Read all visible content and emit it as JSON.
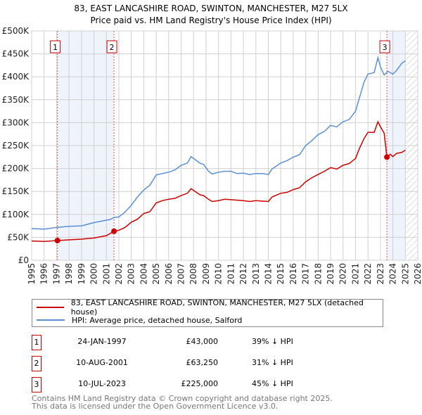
{
  "chart_data": {
    "type": "line",
    "title": "83, EAST LANCASHIRE ROAD, SWINTON, MANCHESTER, M27 5LX",
    "subtitle": "Price paid vs. HM Land Registry's House Price Index (HPI)",
    "xlabel": "",
    "ylabel": "",
    "xlim": [
      1995,
      2026
    ],
    "ylim": [
      0,
      500000
    ],
    "grid": true,
    "x_ticks": [
      "1995",
      "1996",
      "1997",
      "1998",
      "1999",
      "2000",
      "2001",
      "2002",
      "2003",
      "2004",
      "2005",
      "2006",
      "2007",
      "2008",
      "2009",
      "2010",
      "2011",
      "2012",
      "2013",
      "2014",
      "2015",
      "2016",
      "2017",
      "2018",
      "2019",
      "2020",
      "2021",
      "2022",
      "2023",
      "2024",
      "2025",
      "2026"
    ],
    "y_ticks": [
      {
        "v": 0,
        "label": "£0"
      },
      {
        "v": 50000,
        "label": "£50K"
      },
      {
        "v": 100000,
        "label": "£100K"
      },
      {
        "v": 150000,
        "label": "£150K"
      },
      {
        "v": 200000,
        "label": "£200K"
      },
      {
        "v": 250000,
        "label": "£250K"
      },
      {
        "v": 300000,
        "label": "£300K"
      },
      {
        "v": 350000,
        "label": "£350K"
      },
      {
        "v": 400000,
        "label": "£400K"
      },
      {
        "v": 450000,
        "label": "£450K"
      },
      {
        "v": 500000,
        "label": "£500K"
      }
    ],
    "series": [
      {
        "name": "83, EAST LANCASHIRE ROAD, SWINTON, MANCHESTER, M27 5LX (detached house)",
        "color": "#cc0000",
        "x": [
          1995,
          1996,
          1997.07,
          1998,
          1999,
          2000,
          2001,
          2001.61,
          2002,
          2002.5,
          2003,
          2003.5,
          2004,
          2004.5,
          2005,
          2005.5,
          2006,
          2006.5,
          2007,
          2007.5,
          2007.8,
          2008.5,
          2008.8,
          2009.2,
          2009.5,
          2010,
          2010.5,
          2011,
          2012,
          2012.5,
          2013,
          2013.5,
          2014,
          2014.3,
          2015,
          2015.5,
          2016,
          2016.5,
          2017,
          2017.5,
          2018,
          2018.5,
          2019,
          2019.5,
          2020,
          2020.5,
          2021,
          2021.3,
          2021.7,
          2022,
          2022.5,
          2022.8,
          2023,
          2023.3,
          2023.52,
          2023.8,
          2024,
          2024.3,
          2024.7,
          2025
        ],
        "y": [
          42000,
          41000,
          43000,
          44500,
          46000,
          48500,
          53700,
          63250,
          65400,
          71600,
          83000,
          89500,
          102000,
          106000,
          125000,
          130000,
          133000,
          135000,
          141000,
          146000,
          156000,
          143000,
          141000,
          133000,
          128000,
          130000,
          133000,
          132000,
          130000,
          128000,
          130000,
          129000,
          128000,
          138000,
          146000,
          148000,
          154000,
          158000,
          171000,
          180000,
          187000,
          194000,
          202000,
          199000,
          207000,
          211000,
          222000,
          243000,
          266000,
          279000,
          279000,
          302000,
          291000,
          277000,
          225000,
          231000,
          226000,
          233000,
          235000,
          240000
        ]
      },
      {
        "name": "HPI: Average price, detached house, Salford",
        "color": "#5b8fd4",
        "x": [
          1995,
          1996,
          1997,
          1998,
          1999,
          2000,
          2001.3,
          2001.6,
          2002,
          2002.5,
          2003,
          2003.5,
          2004,
          2004.5,
          2005,
          2006,
          2006.5,
          2007,
          2007.5,
          2007.8,
          2008.5,
          2008.8,
          2009.2,
          2009.5,
          2010,
          2010.5,
          2011,
          2011.5,
          2012,
          2012.5,
          2013,
          2013.5,
          2014,
          2014.3,
          2015,
          2015.5,
          2016,
          2016.5,
          2017,
          2017.5,
          2018,
          2018.5,
          2019,
          2019.5,
          2020,
          2020.5,
          2021,
          2021.3,
          2021.7,
          2022,
          2022.5,
          2022.8,
          2023,
          2023.3,
          2023.6,
          2024,
          2024.3,
          2024.7,
          2025
        ],
        "y": [
          69000,
          68000,
          71500,
          74000,
          75000,
          82000,
          89000,
          93000,
          94500,
          105000,
          120000,
          138000,
          153000,
          164000,
          186000,
          192000,
          197000,
          207000,
          212000,
          226000,
          212000,
          209000,
          194000,
          188000,
          192000,
          194000,
          194000,
          189000,
          190000,
          187000,
          189000,
          189000,
          187000,
          199000,
          212000,
          217000,
          225000,
          230000,
          250000,
          261000,
          274000,
          281000,
          294000,
          291000,
          302000,
          307000,
          325000,
          353000,
          389000,
          406000,
          409000,
          442000,
          422000,
          404000,
          412000,
          406000,
          414000,
          429000,
          435000
        ]
      }
    ],
    "sales": [
      {
        "id": "1",
        "x": 1997.07,
        "price": 43000
      },
      {
        "id": "2",
        "x": 2001.61,
        "price": 63250
      },
      {
        "id": "3",
        "x": 2023.52,
        "price": 225000
      }
    ],
    "shaded_ranges": [
      [
        1997.07,
        2001.61
      ],
      [
        2023.52,
        2025.0
      ]
    ],
    "forecast_hatch_from": 2025.05,
    "legend_placement": "below"
  },
  "legend": {
    "items": [
      {
        "label": "83, EAST LANCASHIRE ROAD, SWINTON, MANCHESTER, M27 5LX (detached house)",
        "color": "#cc0000"
      },
      {
        "label": "HPI: Average price, detached house, Salford",
        "color": "#5b8fd4"
      }
    ]
  },
  "transactions": [
    {
      "num": "1",
      "date": "24-JAN-1997",
      "price": "£43,000",
      "hpi": "39% ↓ HPI"
    },
    {
      "num": "2",
      "date": "10-AUG-2001",
      "price": "£63,250",
      "hpi": "31% ↓ HPI"
    },
    {
      "num": "3",
      "date": "10-JUL-2023",
      "price": "£225,000",
      "hpi": "45% ↓ HPI"
    }
  ],
  "footer": {
    "line1": "Contains HM Land Registry data © Crown copyright and database right 2025.",
    "line2": "This data is licensed under the Open Government Licence v3.0."
  }
}
